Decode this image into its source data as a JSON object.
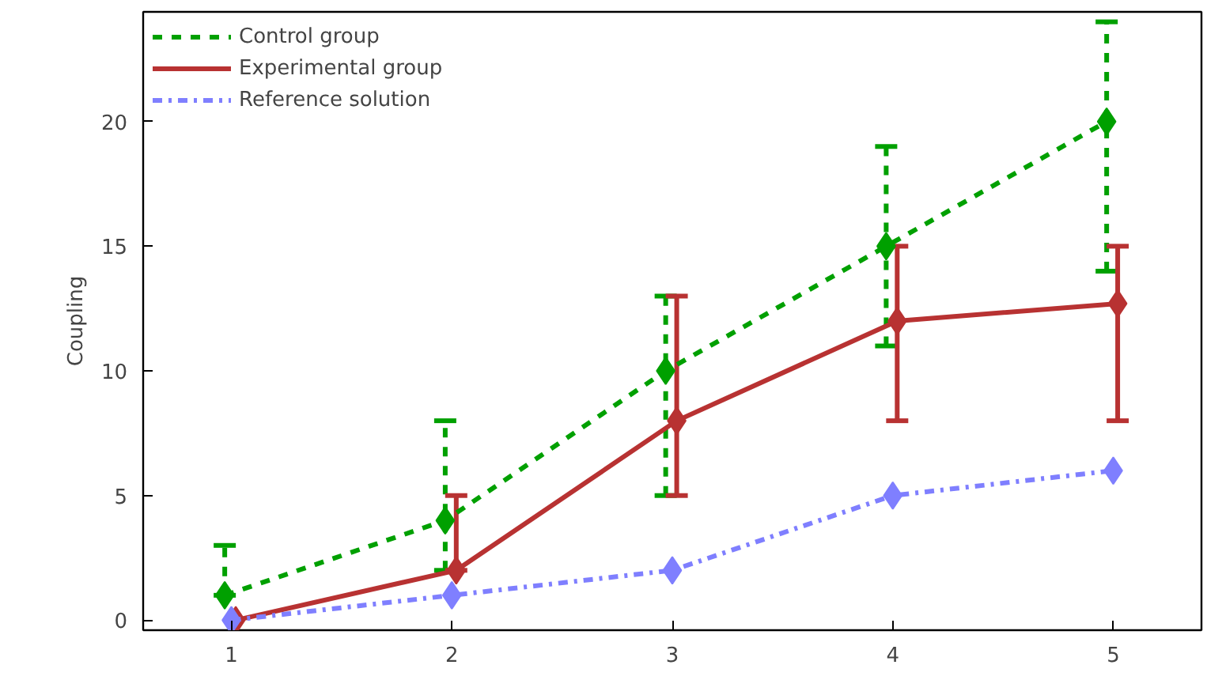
{
  "chart_data": {
    "type": "line",
    "ylabel": "Coupling",
    "xlim": [
      0.6,
      5.4
    ],
    "xticks": [
      1,
      2,
      3,
      4,
      5
    ],
    "ylim": [
      -0.4,
      24.4
    ],
    "yticks": [
      0,
      5,
      10,
      15,
      20
    ],
    "grid": false,
    "legend": "top left",
    "marker": "diamond",
    "series": [
      {
        "name": "Control group",
        "color": "#00a000",
        "line_style": "dashed",
        "x": [
          0.97,
          1.97,
          2.97,
          3.97,
          4.97
        ],
        "values": [
          1,
          4,
          10,
          15,
          20
        ],
        "errors": [
          [
            1,
            3
          ],
          [
            2,
            8
          ],
          [
            5,
            13
          ],
          [
            11,
            19
          ],
          [
            14,
            24
          ]
        ]
      },
      {
        "name": "Experimental group",
        "color": "#b83232",
        "line_style": "solid",
        "x": [
          1.02,
          2.02,
          3.02,
          4.02,
          5.02
        ],
        "values": [
          0,
          2,
          8,
          12,
          12.7
        ],
        "errors": [
          null,
          [
            2,
            5
          ],
          [
            5,
            13
          ],
          [
            8,
            15
          ],
          [
            8,
            15
          ]
        ]
      },
      {
        "name": "Reference solution",
        "color": "#7f7fff",
        "line_style": "dashdot",
        "x": [
          1,
          2,
          3,
          4,
          5
        ],
        "values": [
          0,
          1,
          2,
          5,
          6
        ]
      }
    ]
  }
}
